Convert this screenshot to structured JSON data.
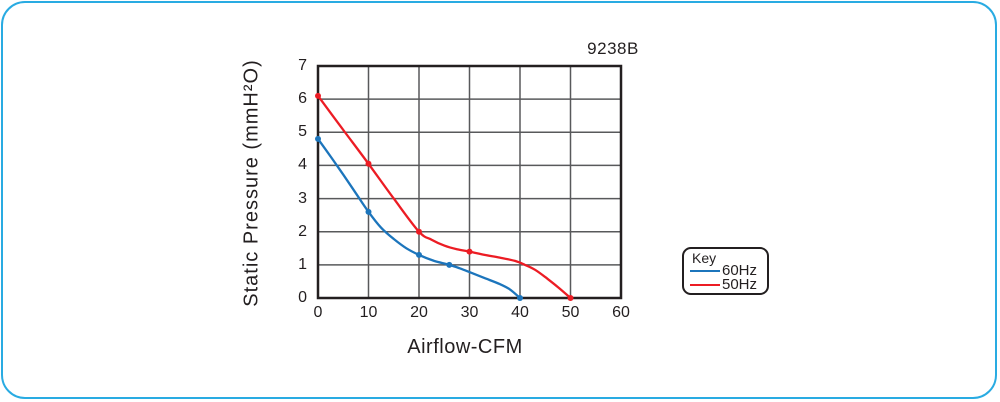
{
  "panel": {
    "border_color": "#29ABE2",
    "background": "#FFFFFF"
  },
  "chart_data": {
    "type": "line",
    "title": "9238B",
    "xlabel": "Airflow-CFM",
    "ylabel": "Static Pressure (mmH²O)",
    "xlim": [
      0,
      60
    ],
    "ylim": [
      0,
      7
    ],
    "xticks": [
      0,
      10,
      20,
      30,
      40,
      50,
      60
    ],
    "yticks": [
      0,
      1,
      2,
      3,
      4,
      5,
      6,
      7
    ],
    "grid": true,
    "colors": {
      "axis": "#231F20",
      "grid": "#58595B",
      "text": "#231F20"
    },
    "legend": {
      "title": "Key",
      "position": "right-of-chart"
    },
    "series": [
      {
        "name": "60Hz",
        "color": "#1C75BC",
        "markers": [
          [
            0,
            4.8
          ],
          [
            10,
            2.6
          ],
          [
            20,
            1.3
          ],
          [
            26,
            1.0
          ],
          [
            40,
            0
          ]
        ],
        "points": [
          [
            0,
            4.8
          ],
          [
            2.5,
            4.27
          ],
          [
            5,
            3.72
          ],
          [
            7.5,
            3.16
          ],
          [
            10,
            2.6
          ],
          [
            12.5,
            2.12
          ],
          [
            15,
            1.78
          ],
          [
            17.5,
            1.5
          ],
          [
            20,
            1.3
          ],
          [
            23,
            1.12
          ],
          [
            26,
            1.0
          ],
          [
            28,
            0.9
          ],
          [
            30,
            0.78
          ],
          [
            33,
            0.6
          ],
          [
            36,
            0.42
          ],
          [
            38,
            0.26
          ],
          [
            40,
            0
          ]
        ]
      },
      {
        "name": "50Hz",
        "color": "#EC1C24",
        "markers": [
          [
            0,
            6.1
          ],
          [
            10,
            4.05
          ],
          [
            20,
            2.0
          ],
          [
            30,
            1.4
          ],
          [
            50,
            0
          ]
        ],
        "points": [
          [
            0,
            6.1
          ],
          [
            5,
            5.07
          ],
          [
            10,
            4.05
          ],
          [
            15,
            3.0
          ],
          [
            20,
            2.0
          ],
          [
            22.5,
            1.76
          ],
          [
            25,
            1.58
          ],
          [
            27.5,
            1.47
          ],
          [
            30,
            1.4
          ],
          [
            33,
            1.3
          ],
          [
            36,
            1.22
          ],
          [
            39,
            1.12
          ],
          [
            41,
            1.0
          ],
          [
            43,
            0.85
          ],
          [
            45,
            0.63
          ],
          [
            47.5,
            0.33
          ],
          [
            50,
            0
          ]
        ]
      }
    ]
  }
}
